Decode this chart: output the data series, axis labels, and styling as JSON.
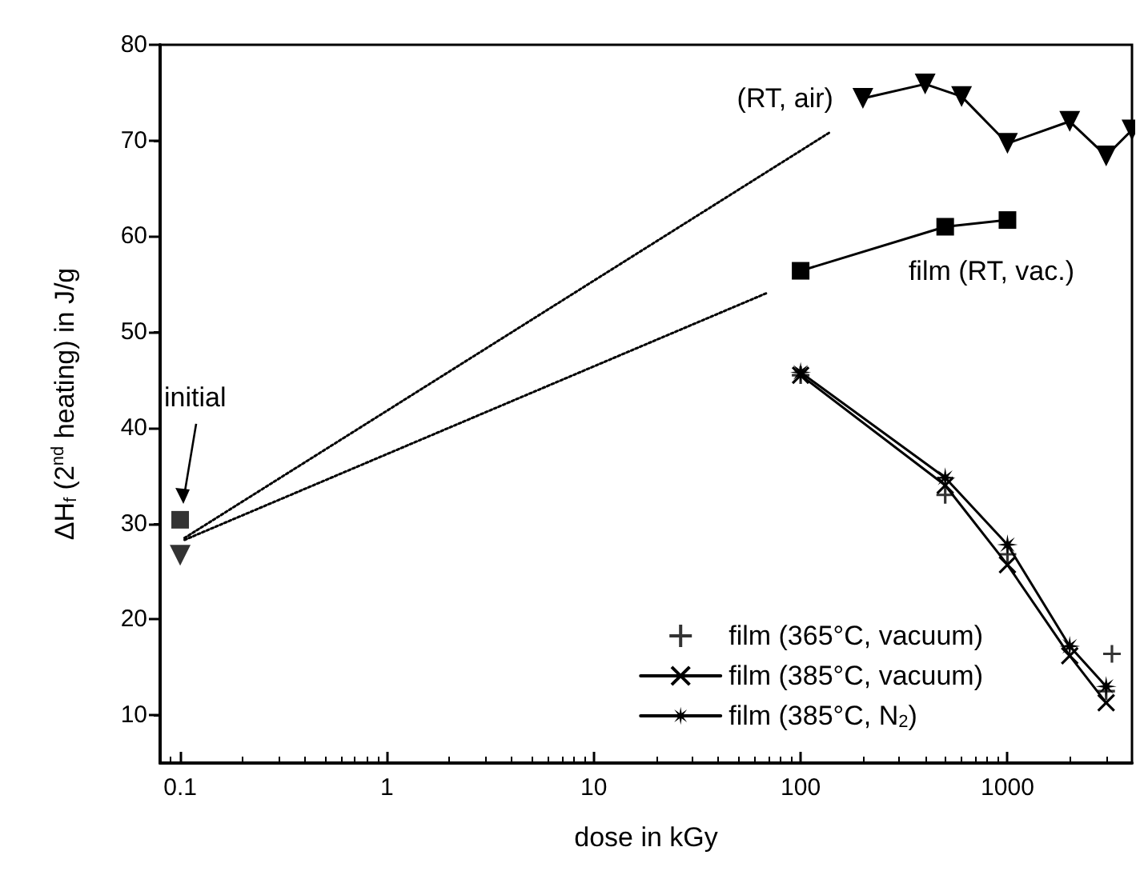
{
  "chart_data": {
    "type": "line",
    "xlabel": "dose in kGy",
    "ylabel": "ΔH$_{f}$ (2$^{nd}$ heating) in J/g",
    "log": "x",
    "xlim": [
      0.08,
      4000
    ],
    "xticks": [
      0.1,
      1,
      10,
      100,
      1000
    ],
    "ylim": [
      5,
      80
    ],
    "yticks": [
      10,
      20,
      30,
      40,
      50,
      60,
      70,
      80
    ],
    "grid": false,
    "legend": "bottom right",
    "annotations": [
      "initial"
    ],
    "series": [
      {
        "name": "(RT, air)",
        "color": "#000000",
        "marker": "triangle_down",
        "x": [
          200,
          400,
          600,
          1000,
          2000,
          3000,
          4000
        ],
        "values": [
          74.4,
          75.9,
          74.6,
          69.7,
          72.0,
          68.4,
          71.1
        ]
      },
      {
        "name": "film (RT, vac.)",
        "color": "#000000",
        "marker": "square",
        "x": [
          100,
          500,
          1000
        ],
        "values": [
          56.4,
          61.0,
          61.7
        ]
      },
      {
        "color": "#000000",
        "marker": "triangle_down",
        "type": "scatter",
        "x": [
          0.1
        ],
        "values": [
          26.7
        ]
      },
      {
        "color": "#000000",
        "marker": "square",
        "type": "scatter",
        "x": [
          0.1
        ],
        "values": [
          30.4
        ]
      },
      {
        "color": "#000000",
        "marker": "none",
        "line_style": "dotted",
        "x": [
          0.105,
          137
        ],
        "values": [
          28.5,
          70.8
        ]
      },
      {
        "color": "#000000",
        "marker": "none",
        "line_style": "dotted",
        "x": [
          0.105,
          69
        ],
        "values": [
          28.3,
          54.1
        ]
      },
      {
        "name": "film (365°C, vacuum)",
        "type": "scatter",
        "color": "#000000",
        "marker": "plus",
        "x": [
          100,
          500,
          1000,
          2000,
          3000,
          3200
        ],
        "values": [
          45.5,
          33.0,
          26.8,
          null,
          12.5,
          16.4
        ]
      },
      {
        "name": "film (385°C, vacuum)",
        "color": "#000000",
        "marker": "cross",
        "x": [
          100,
          500,
          1000,
          2000,
          3000
        ],
        "values": [
          45.5,
          34.0,
          25.7,
          16.2,
          11.3
        ]
      },
      {
        "name": "film (385°C, N$_{2}$)",
        "color": "#000000",
        "marker": "star",
        "x": [
          100,
          500,
          1000,
          2000,
          3000
        ],
        "values": [
          45.8,
          34.8,
          27.8,
          17.2,
          13.0
        ]
      }
    ]
  }
}
